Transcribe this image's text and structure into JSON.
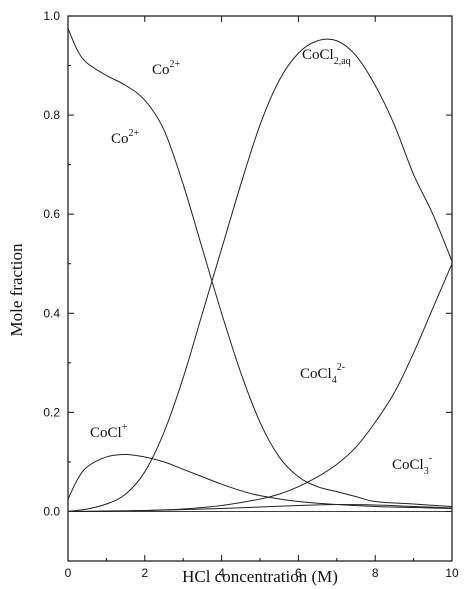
{
  "chart_data": {
    "type": "line",
    "xlabel": "HCl concentration (M)",
    "ylabel": "Mole fraction",
    "xlim": [
      0,
      10
    ],
    "ylim": [
      -0.1,
      1.0
    ],
    "xticks": [
      "0",
      "2",
      "4",
      "6",
      "8",
      "10"
    ],
    "yticks": [
      "0.0",
      "0.2",
      "0.4",
      "0.6",
      "0.8",
      "1.0"
    ],
    "grid": false,
    "legend": "none",
    "line_color": "#222222",
    "series": [
      {
        "label": "Co2+",
        "x": [
          0,
          0.25,
          0.5,
          1,
          1.5,
          2,
          2.5,
          3,
          3.5,
          4,
          4.5,
          5,
          5.5,
          6,
          6.5,
          7,
          7.5,
          8,
          9,
          10
        ],
        "y": [
          0.975,
          0.93,
          0.905,
          0.88,
          0.86,
          0.83,
          0.77,
          0.66,
          0.53,
          0.4,
          0.28,
          0.18,
          0.11,
          0.07,
          0.05,
          0.04,
          0.03,
          0.02,
          0.015,
          0.01
        ]
      },
      {
        "label": "CoCl+",
        "x": [
          0,
          0.25,
          0.5,
          1,
          1.5,
          2,
          2.5,
          3,
          3.5,
          4,
          4.5,
          5,
          6,
          7,
          8,
          9,
          10
        ],
        "y": [
          0.025,
          0.065,
          0.09,
          0.11,
          0.115,
          0.11,
          0.1,
          0.085,
          0.07,
          0.055,
          0.042,
          0.032,
          0.02,
          0.014,
          0.01,
          0.008,
          0.006
        ]
      },
      {
        "label": "CoCl2,aq",
        "x": [
          0,
          0.5,
          1,
          1.5,
          2,
          2.5,
          3,
          3.5,
          4,
          4.5,
          5,
          5.5,
          6,
          6.5,
          7,
          7.5,
          8,
          8.5,
          9,
          9.5,
          10
        ],
        "y": [
          0.0,
          0.005,
          0.015,
          0.035,
          0.08,
          0.16,
          0.27,
          0.4,
          0.53,
          0.66,
          0.78,
          0.87,
          0.925,
          0.95,
          0.95,
          0.92,
          0.86,
          0.78,
          0.68,
          0.6,
          0.505
        ]
      },
      {
        "label": "CoCl4 2-",
        "x": [
          0,
          1,
          2,
          3,
          4,
          5,
          5.5,
          6,
          6.5,
          7,
          7.5,
          8,
          8.5,
          9,
          9.5,
          10
        ],
        "y": [
          0.0,
          0.0,
          0.002,
          0.005,
          0.012,
          0.025,
          0.035,
          0.05,
          0.07,
          0.095,
          0.13,
          0.18,
          0.24,
          0.32,
          0.41,
          0.5
        ]
      },
      {
        "label": "CoCl3 -",
        "x": [
          0,
          2,
          4,
          5,
          6,
          7,
          8,
          9,
          10
        ],
        "y": [
          0.0,
          0.002,
          0.006,
          0.009,
          0.012,
          0.014,
          0.013,
          0.01,
          0.007
        ]
      }
    ],
    "annotations": [
      {
        "base": "Co",
        "sup": "2+",
        "sub": ""
      },
      {
        "base": "Co",
        "sup": "2+",
        "sub": ""
      },
      {
        "base": "CoCl",
        "sup": "",
        "sub": "2,aq"
      },
      {
        "base": "CoCl",
        "sup": "+",
        "sub": ""
      },
      {
        "base": "CoCl",
        "sup": "2-",
        "sub": "4"
      },
      {
        "base": "CoCl",
        "sup": "-",
        "sub": "3"
      }
    ]
  }
}
